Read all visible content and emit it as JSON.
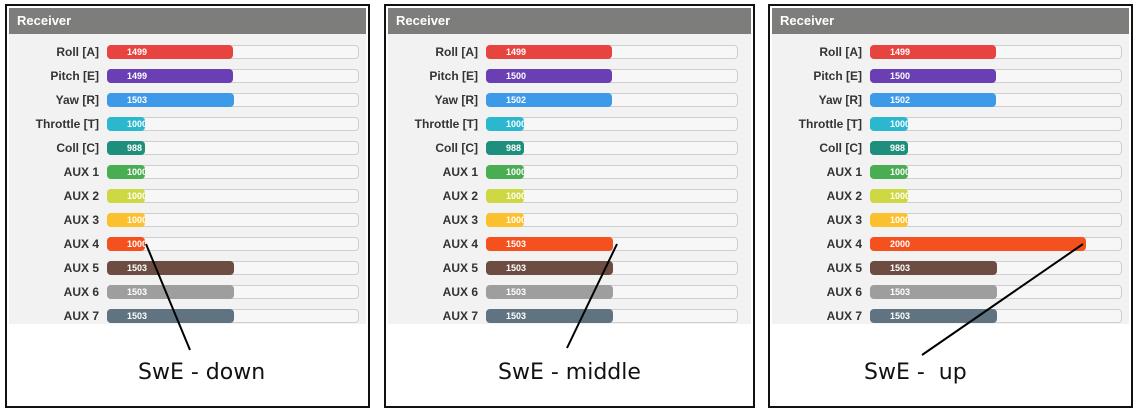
{
  "panels": [
    {
      "title": "Receiver",
      "caption": "SwE - down",
      "channels": [
        {
          "label": "Roll [A]",
          "value": "1499",
          "level": 1499,
          "color": "#e8443f"
        },
        {
          "label": "Pitch [E]",
          "value": "1499",
          "level": 1499,
          "color": "#6a3fb3"
        },
        {
          "label": "Yaw [R]",
          "value": "1503",
          "level": 1503,
          "color": "#3d9ae8"
        },
        {
          "label": "Throttle [T]",
          "value": "1000",
          "level": 1000,
          "color": "#2bb8cf"
        },
        {
          "label": "Coll [C]",
          "value": "988",
          "level": 988,
          "color": "#1e8f7c"
        },
        {
          "label": "AUX 1",
          "value": "1000",
          "level": 1000,
          "color": "#4aad52"
        },
        {
          "label": "AUX 2",
          "value": "1000",
          "level": 1000,
          "color": "#cdd842"
        },
        {
          "label": "AUX 3",
          "value": "1000",
          "level": 1000,
          "color": "#fbc02d"
        },
        {
          "label": "AUX 4",
          "value": "1000",
          "level": 1000,
          "color": "#f4511e"
        },
        {
          "label": "AUX 5",
          "value": "1503",
          "level": 1503,
          "color": "#6d4c41"
        },
        {
          "label": "AUX 6",
          "value": "1503",
          "level": 1503,
          "color": "#9e9e9e"
        },
        {
          "label": "AUX 7",
          "value": "1503",
          "level": 1503,
          "color": "#5f7480"
        }
      ]
    },
    {
      "title": "Receiver",
      "caption": "SwE - middle",
      "channels": [
        {
          "label": "Roll [A]",
          "value": "1499",
          "level": 1499,
          "color": "#e8443f"
        },
        {
          "label": "Pitch [E]",
          "value": "1500",
          "level": 1500,
          "color": "#6a3fb3"
        },
        {
          "label": "Yaw [R]",
          "value": "1502",
          "level": 1502,
          "color": "#3d9ae8"
        },
        {
          "label": "Throttle [T]",
          "value": "1000",
          "level": 1000,
          "color": "#2bb8cf"
        },
        {
          "label": "Coll [C]",
          "value": "988",
          "level": 988,
          "color": "#1e8f7c"
        },
        {
          "label": "AUX 1",
          "value": "1000",
          "level": 1000,
          "color": "#4aad52"
        },
        {
          "label": "AUX 2",
          "value": "1000",
          "level": 1000,
          "color": "#cdd842"
        },
        {
          "label": "AUX 3",
          "value": "1000",
          "level": 1000,
          "color": "#fbc02d"
        },
        {
          "label": "AUX 4",
          "value": "1503",
          "level": 1503,
          "color": "#f4511e"
        },
        {
          "label": "AUX 5",
          "value": "1503",
          "level": 1503,
          "color": "#6d4c41"
        },
        {
          "label": "AUX 6",
          "value": "1503",
          "level": 1503,
          "color": "#9e9e9e"
        },
        {
          "label": "AUX 7",
          "value": "1503",
          "level": 1503,
          "color": "#5f7480"
        }
      ]
    },
    {
      "title": "Receiver",
      "caption": "SwE -  up",
      "channels": [
        {
          "label": "Roll [A]",
          "value": "1499",
          "level": 1499,
          "color": "#e8443f"
        },
        {
          "label": "Pitch [E]",
          "value": "1500",
          "level": 1500,
          "color": "#6a3fb3"
        },
        {
          "label": "Yaw [R]",
          "value": "1502",
          "level": 1502,
          "color": "#3d9ae8"
        },
        {
          "label": "Throttle [T]",
          "value": "1000",
          "level": 1000,
          "color": "#2bb8cf"
        },
        {
          "label": "Coll [C]",
          "value": "988",
          "level": 988,
          "color": "#1e8f7c"
        },
        {
          "label": "AUX 1",
          "value": "1000",
          "level": 1000,
          "color": "#4aad52"
        },
        {
          "label": "AUX 2",
          "value": "1000",
          "level": 1000,
          "color": "#cdd842"
        },
        {
          "label": "AUX 3",
          "value": "1000",
          "level": 1000,
          "color": "#fbc02d"
        },
        {
          "label": "AUX 4",
          "value": "2000",
          "level": 2000,
          "color": "#f4511e"
        },
        {
          "label": "AUX 5",
          "value": "1503",
          "level": 1503,
          "color": "#6d4c41"
        },
        {
          "label": "AUX 6",
          "value": "1503",
          "level": 1503,
          "color": "#9e9e9e"
        },
        {
          "label": "AUX 7",
          "value": "1503",
          "level": 1503,
          "color": "#5f7480"
        }
      ]
    }
  ]
}
